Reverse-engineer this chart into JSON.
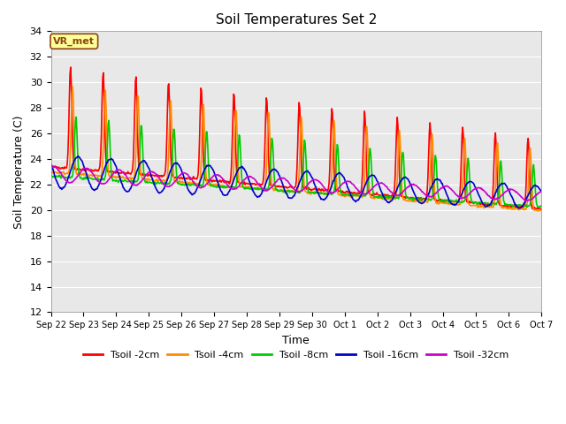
{
  "title": "Soil Temperatures Set 2",
  "xlabel": "Time",
  "ylabel": "Soil Temperature (C)",
  "ylim": [
    12,
    34
  ],
  "yticks": [
    12,
    14,
    16,
    18,
    20,
    22,
    24,
    26,
    28,
    30,
    32,
    34
  ],
  "x_labels": [
    "Sep 22",
    "Sep 23",
    "Sep 24",
    "Sep 25",
    "Sep 26",
    "Sep 27",
    "Sep 28",
    "Sep 29",
    "Sep 30",
    "Oct 1",
    "Oct 2",
    "Oct 3",
    "Oct 4",
    "Oct 5",
    "Oct 6",
    "Oct 7"
  ],
  "colors": {
    "Tsoil -2cm": "#FF0000",
    "Tsoil -4cm": "#FF8C00",
    "Tsoil -8cm": "#00CC00",
    "Tsoil -16cm": "#0000CC",
    "Tsoil -32cm": "#CC00CC"
  },
  "annotation_text": "VR_met",
  "annotation_bg": "#FFFF99",
  "annotation_border": "#8B4513",
  "plot_bg": "#E8E8E8",
  "linewidth": 1.2,
  "n_days": 15,
  "n_points_per_day": 48
}
